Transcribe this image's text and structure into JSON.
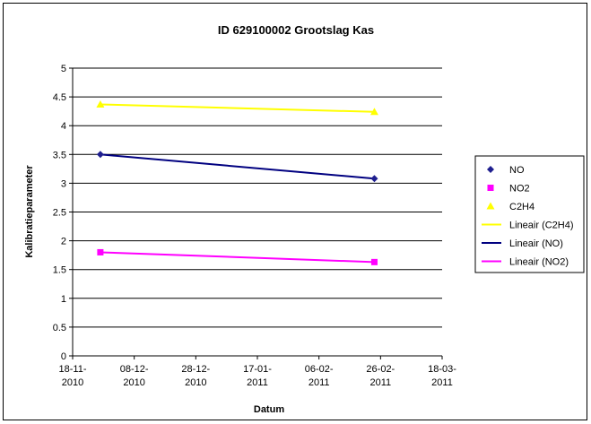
{
  "chart_data": {
    "type": "scatter",
    "title": "ID 629100002 Grootslag Kas",
    "xlabel": "Datum",
    "ylabel": "Kalibratieparameter",
    "xlim": [
      "2010-11-18",
      "2011-03-18"
    ],
    "ylim": [
      0,
      5
    ],
    "grid": true,
    "legend_position": "right",
    "x_ticks": [
      {
        "date": "2010-11-18",
        "line1": "18-11-",
        "line2": "2010"
      },
      {
        "date": "2010-12-08",
        "line1": "08-12-",
        "line2": "2010"
      },
      {
        "date": "2010-12-28",
        "line1": "28-12-",
        "line2": "2010"
      },
      {
        "date": "2011-01-17",
        "line1": "17-01-",
        "line2": "2011"
      },
      {
        "date": "2011-02-06",
        "line1": "06-02-",
        "line2": "2011"
      },
      {
        "date": "2011-02-26",
        "line1": "26-02-",
        "line2": "2011"
      },
      {
        "date": "2011-03-18",
        "line1": "18-03-",
        "line2": "2011"
      }
    ],
    "y_ticks": [
      "0",
      "0.5",
      "1",
      "1.5",
      "2",
      "2.5",
      "3",
      "3.5",
      "4",
      "4.5",
      "5"
    ],
    "series": [
      {
        "name": "NO",
        "color": "#1f1f8f",
        "marker": "diamond",
        "points": [
          {
            "x": "2010-11-27",
            "y": 3.5
          },
          {
            "x": "2011-02-24",
            "y": 3.08
          }
        ]
      },
      {
        "name": "NO2",
        "color": "#ff00ff",
        "marker": "square",
        "points": [
          {
            "x": "2010-11-27",
            "y": 1.8
          },
          {
            "x": "2011-02-24",
            "y": 1.63
          }
        ]
      },
      {
        "name": "C2H4",
        "color": "#ffff00",
        "marker": "triangle",
        "points": [
          {
            "x": "2010-11-27",
            "y": 4.37
          },
          {
            "x": "2011-02-24",
            "y": 4.24
          }
        ]
      }
    ],
    "trendlines": [
      {
        "name": "Lineair (C2H4)",
        "series": "C2H4",
        "color": "#ffff00"
      },
      {
        "name": "Lineair (NO)",
        "series": "NO",
        "color": "#000080"
      },
      {
        "name": "Lineair (NO2)",
        "series": "NO2",
        "color": "#ff00ff"
      }
    ]
  }
}
